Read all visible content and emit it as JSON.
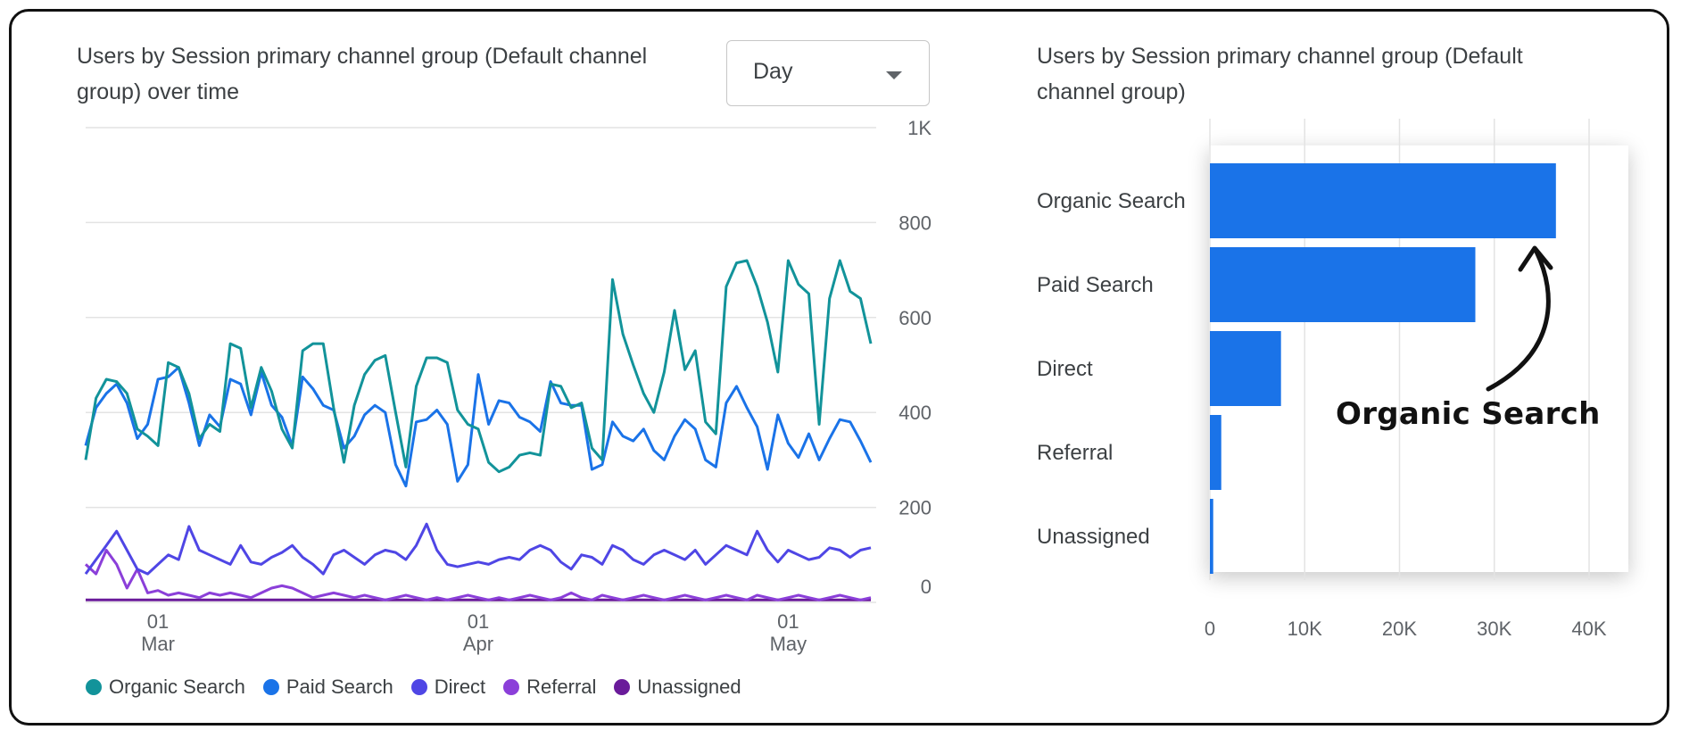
{
  "chart_data": [
    {
      "type": "line",
      "title": "Users by Session primary channel group (Default channel group) over time",
      "granularity_select": "Day",
      "y_ticks": [
        "0",
        "200",
        "400",
        "600",
        "800",
        "1K"
      ],
      "ylim": [
        0,
        1000
      ],
      "x_ticks": [
        {
          "day": "01",
          "month": "Mar",
          "index": 7
        },
        {
          "day": "01",
          "month": "Apr",
          "index": 38
        },
        {
          "day": "01",
          "month": "May",
          "index": 68
        }
      ],
      "grid": true,
      "legend_position": "bottom",
      "series": [
        {
          "name": "Organic Search",
          "color": "#12939A",
          "values": [
            300,
            430,
            470,
            465,
            440,
            365,
            350,
            330,
            505,
            495,
            440,
            345,
            375,
            360,
            545,
            535,
            410,
            495,
            445,
            365,
            325,
            530,
            545,
            545,
            410,
            295,
            415,
            480,
            510,
            520,
            400,
            285,
            455,
            515,
            515,
            505,
            405,
            375,
            365,
            295,
            275,
            285,
            310,
            315,
            310,
            460,
            455,
            410,
            420,
            325,
            300,
            680,
            565,
            500,
            440,
            400,
            485,
            615,
            490,
            530,
            380,
            355,
            665,
            715,
            720,
            665,
            590,
            485,
            720,
            670,
            650,
            375,
            640,
            720,
            655,
            640,
            545
          ]
        },
        {
          "name": "Paid Search",
          "color": "#1A73E8",
          "values": [
            330,
            410,
            440,
            460,
            420,
            345,
            375,
            470,
            475,
            495,
            420,
            330,
            395,
            370,
            470,
            460,
            395,
            485,
            415,
            390,
            330,
            475,
            450,
            415,
            405,
            325,
            350,
            395,
            415,
            400,
            290,
            245,
            380,
            385,
            405,
            375,
            255,
            290,
            480,
            375,
            425,
            420,
            390,
            380,
            360,
            465,
            420,
            415,
            415,
            280,
            290,
            380,
            350,
            340,
            365,
            320,
            300,
            350,
            385,
            365,
            300,
            285,
            420,
            455,
            410,
            370,
            280,
            395,
            335,
            305,
            355,
            300,
            345,
            385,
            380,
            340,
            295
          ]
        },
        {
          "name": "Direct",
          "color": "#4F46E5",
          "values": [
            60,
            90,
            120,
            150,
            110,
            70,
            60,
            80,
            100,
            90,
            160,
            110,
            100,
            90,
            80,
            120,
            85,
            80,
            95,
            105,
            120,
            95,
            80,
            60,
            100,
            110,
            95,
            80,
            100,
            110,
            105,
            90,
            120,
            165,
            110,
            80,
            75,
            80,
            85,
            80,
            90,
            95,
            90,
            110,
            120,
            110,
            85,
            70,
            100,
            95,
            80,
            120,
            110,
            90,
            80,
            100,
            110,
            100,
            90,
            110,
            80,
            100,
            120,
            110,
            100,
            150,
            110,
            85,
            110,
            100,
            90,
            95,
            115,
            110,
            95,
            110,
            115
          ]
        },
        {
          "name": "Referral",
          "color": "#8B3FD9",
          "values": [
            80,
            60,
            110,
            80,
            30,
            70,
            20,
            25,
            15,
            20,
            15,
            10,
            20,
            15,
            20,
            15,
            10,
            20,
            30,
            35,
            30,
            20,
            10,
            15,
            20,
            15,
            10,
            15,
            10,
            5,
            10,
            15,
            10,
            5,
            10,
            5,
            10,
            15,
            10,
            5,
            10,
            5,
            10,
            15,
            10,
            5,
            10,
            20,
            10,
            5,
            15,
            10,
            5,
            10,
            15,
            10,
            5,
            10,
            15,
            10,
            5,
            10,
            15,
            10,
            5,
            15,
            10,
            5,
            10,
            15,
            10,
            5,
            10,
            15,
            10,
            5,
            10
          ]
        },
        {
          "name": "Unassigned",
          "color": "#6A1B9A",
          "values": [
            5,
            5,
            5,
            5,
            5,
            5,
            5,
            5,
            5,
            5,
            5,
            5,
            5,
            5,
            5,
            5,
            5,
            5,
            5,
            5,
            5,
            5,
            5,
            5,
            5,
            5,
            5,
            5,
            5,
            5,
            5,
            5,
            5,
            5,
            5,
            5,
            5,
            5,
            5,
            5,
            5,
            5,
            5,
            5,
            5,
            5,
            5,
            5,
            5,
            5,
            5,
            5,
            5,
            5,
            5,
            5,
            5,
            5,
            5,
            5,
            5,
            5,
            5,
            5,
            5,
            5,
            5,
            5,
            5,
            5,
            5,
            5,
            5,
            5,
            5,
            5,
            5
          ]
        }
      ]
    },
    {
      "type": "bar",
      "orientation": "horizontal",
      "title": "Users by Session primary channel group (Default channel group)",
      "categories": [
        "Organic Search",
        "Paid Search",
        "Direct",
        "Referral",
        "Unassigned"
      ],
      "values": [
        36500,
        28000,
        7500,
        1200,
        350
      ],
      "color": "#1A73E8",
      "x_ticks": [
        "0",
        "10K",
        "20K",
        "30K",
        "40K"
      ],
      "xlim": [
        0,
        40000
      ],
      "grid": true,
      "annotation": "Organic Search"
    }
  ]
}
